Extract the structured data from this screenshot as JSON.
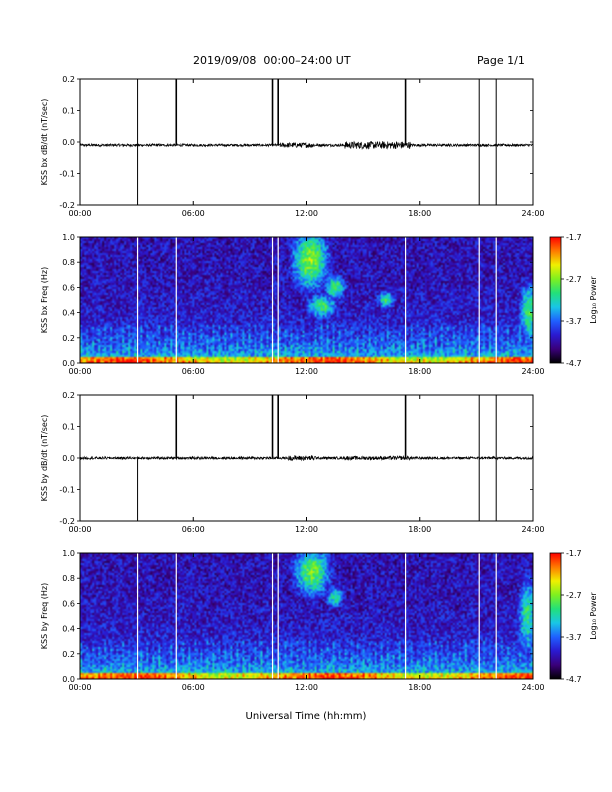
{
  "header": {
    "title": "2019/09/08  00:00–24:00 UT",
    "page": "Page 1/1"
  },
  "x_axis": {
    "tick_labels": [
      "00:00",
      "06:00",
      "12:00",
      "18:00",
      "24:00"
    ],
    "title": "Universal Time (hh:mm)"
  },
  "colors": {
    "axis": "#000000",
    "trace": "#000000",
    "gap_line_timeseries": "#000000",
    "gap_line_spectrogram": "#ffffff",
    "colormap": [
      "#000000",
      "#3a007a",
      "#2a1ad0",
      "#1f60ff",
      "#19c6e6",
      "#22e07a",
      "#7ef020",
      "#f0f000",
      "#ff7a00",
      "#ff0000"
    ]
  },
  "chart_data": [
    {
      "type": "line",
      "id": "kss-bx-dbdt",
      "ylabel": "KSS bx dB/dt (nT/sec)",
      "xlim": [
        0,
        24
      ],
      "ylim": [
        -0.2,
        0.2
      ],
      "yticks": [
        -0.2,
        -0.1,
        0.0,
        0.1,
        0.2
      ],
      "ytick_labels": [
        "-0.2",
        "-0.1",
        "0.0",
        "0.1",
        "0.2"
      ],
      "baseline": -0.01,
      "noise_amplitude": 0.004,
      "bursts": [
        [
          10.6,
          12.4,
          0.008
        ],
        [
          14.0,
          17.5,
          0.012
        ]
      ],
      "gap_lines_hours": [
        {
          "t": 3.05,
          "span": "full"
        },
        {
          "t": 5.1,
          "span": "upper"
        },
        {
          "t": 10.2,
          "span": "upper"
        },
        {
          "t": 10.5,
          "span": "upper"
        },
        {
          "t": 17.25,
          "span": "upper"
        },
        {
          "t": 21.15,
          "span": "full"
        },
        {
          "t": 22.05,
          "span": "full"
        }
      ]
    },
    {
      "type": "heatmap",
      "id": "kss-bx-freq",
      "ylabel": "KSS bx Freq (Hz)",
      "xlim": [
        0,
        24
      ],
      "ylim": [
        0.0,
        1.0
      ],
      "yticks": [
        0.0,
        0.2,
        0.4,
        0.6,
        0.8,
        1.0
      ],
      "ytick_labels": [
        "0.0",
        "0.2",
        "0.4",
        "0.6",
        "0.8",
        "1.0"
      ],
      "colorbar": {
        "label": "Log₁₀ Power",
        "range": [
          -4.7,
          -1.7
        ],
        "ticks": [
          -1.7,
          -2.7,
          -3.7,
          -4.7
        ],
        "tick_labels": [
          "-1.7",
          "-2.7",
          "-3.7",
          "-4.7"
        ]
      },
      "gap_lines_hours": [
        3.05,
        5.1,
        10.2,
        10.5,
        17.25,
        21.15,
        22.05
      ],
      "features": [
        {
          "t": 12.2,
          "f": 0.82,
          "dt": 0.6,
          "df": 0.15,
          "level": 0.58
        },
        {
          "t": 13.5,
          "f": 0.6,
          "dt": 0.35,
          "df": 0.06,
          "level": 0.5
        },
        {
          "t": 12.8,
          "f": 0.45,
          "dt": 0.5,
          "df": 0.06,
          "level": 0.48
        },
        {
          "t": 16.2,
          "f": 0.5,
          "dt": 0.3,
          "df": 0.04,
          "level": 0.45
        },
        {
          "t": 23.8,
          "f": 0.4,
          "dt": 0.3,
          "df": 0.15,
          "level": 0.5
        }
      ]
    },
    {
      "type": "line",
      "id": "kss-by-dbdt",
      "ylabel": "KSS by dB/dt (nT/sec)",
      "xlim": [
        0,
        24
      ],
      "ylim": [
        -0.2,
        0.2
      ],
      "yticks": [
        -0.2,
        -0.1,
        0.0,
        0.1,
        0.2
      ],
      "ytick_labels": [
        "-0.2",
        "-0.1",
        "0.0",
        "0.1",
        "0.2"
      ],
      "baseline": 0.0,
      "noise_amplitude": 0.004,
      "bursts": [
        [
          11.0,
          12.5,
          0.008
        ],
        [
          14.0,
          17.5,
          0.006
        ]
      ],
      "gap_lines_hours": [
        {
          "t": 3.05,
          "span": "lower"
        },
        {
          "t": 5.1,
          "span": "upper"
        },
        {
          "t": 10.2,
          "span": "upper"
        },
        {
          "t": 10.5,
          "span": "upper"
        },
        {
          "t": 17.25,
          "span": "upper"
        },
        {
          "t": 21.15,
          "span": "full"
        },
        {
          "t": 22.05,
          "span": "full"
        }
      ]
    },
    {
      "type": "heatmap",
      "id": "kss-by-freq",
      "ylabel": "KSS by Freq (Hz)",
      "xlim": [
        0,
        24
      ],
      "ylim": [
        0.0,
        1.0
      ],
      "yticks": [
        0.0,
        0.2,
        0.4,
        0.6,
        0.8,
        1.0
      ],
      "ytick_labels": [
        "0.0",
        "0.2",
        "0.4",
        "0.6",
        "0.8",
        "1.0"
      ],
      "colorbar": {
        "label": "Log₁₀ Power",
        "range": [
          -4.7,
          -1.7
        ],
        "ticks": [
          -1.7,
          -2.7,
          -3.7,
          -4.7
        ],
        "tick_labels": [
          "-1.7",
          "-2.7",
          "-3.7",
          "-4.7"
        ]
      },
      "gap_lines_hours": [
        3.05,
        5.1,
        10.2,
        10.5,
        17.25,
        21.15,
        22.05
      ],
      "features": [
        {
          "t": 12.3,
          "f": 0.85,
          "dt": 0.6,
          "df": 0.12,
          "level": 0.55
        },
        {
          "t": 13.5,
          "f": 0.65,
          "dt": 0.3,
          "df": 0.05,
          "level": 0.45
        },
        {
          "t": 23.7,
          "f": 0.5,
          "dt": 0.3,
          "df": 0.2,
          "level": 0.45
        }
      ]
    }
  ]
}
